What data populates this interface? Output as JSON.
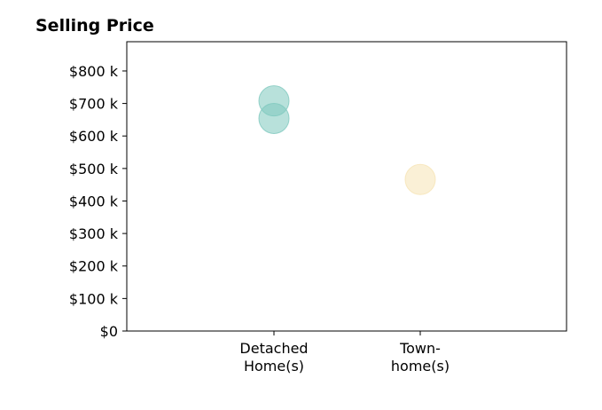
{
  "chart_data": {
    "type": "scatter",
    "title": "Selling Price",
    "xlabel": "",
    "ylabel": "",
    "categories": [
      [
        "Detached",
        "Home(s)"
      ],
      [
        "Town-",
        "home(s)"
      ]
    ],
    "yticks": [
      0,
      100,
      200,
      300,
      400,
      500,
      600,
      700,
      800
    ],
    "ytick_labels": [
      "$0",
      "$100 k",
      "$200 k",
      "$300 k",
      "$400 k",
      "$500 k",
      "$600 k",
      "$700 k",
      "$800 k"
    ],
    "ylim": [
      0,
      890
    ],
    "grid": false,
    "series": [
      {
        "category_index": 0,
        "color": "#7ec8be",
        "values": [
          708,
          654
        ]
      },
      {
        "category_index": 1,
        "color": "#f6e3b4",
        "values": [
          466
        ]
      }
    ]
  }
}
